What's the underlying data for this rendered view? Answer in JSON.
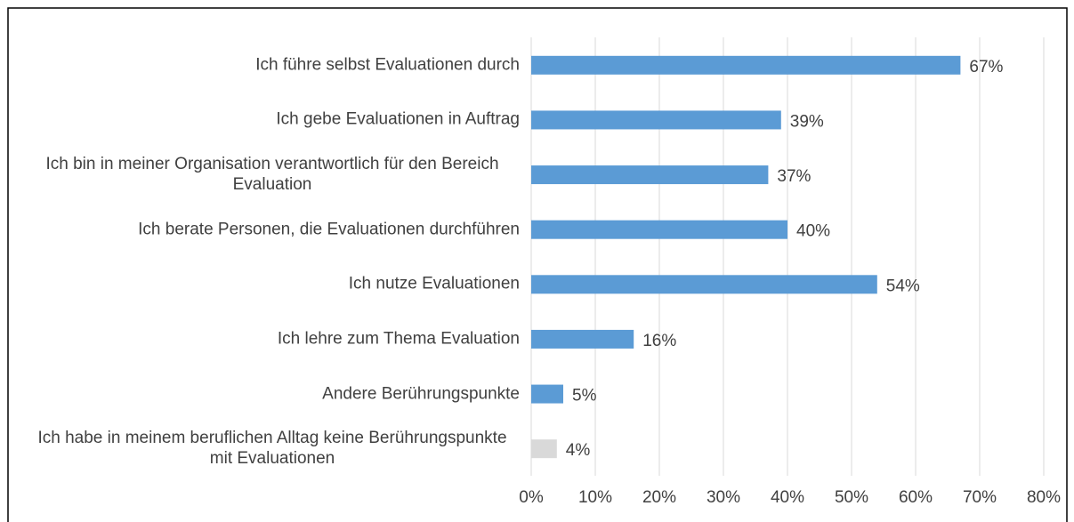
{
  "chart_data": {
    "type": "bar",
    "orientation": "horizontal",
    "categories": [
      "Ich führe selbst Evaluationen durch",
      "Ich gebe Evaluationen in Auftrag",
      "Ich bin in meiner Organisation verantwortlich für den Bereich Evaluation",
      "Ich berate Personen, die Evaluationen durchführen",
      "Ich nutze Evaluationen",
      "Ich lehre zum Thema Evaluation",
      "Andere Berührungspunkte",
      "Ich habe in meinem beruflichen Alltag keine Berührungspunkte mit Evaluationen"
    ],
    "values": [
      67,
      39,
      37,
      40,
      54,
      16,
      5,
      4
    ],
    "value_labels": [
      "67%",
      "39%",
      "37%",
      "40%",
      "54%",
      "16%",
      "5%",
      "4%"
    ],
    "colors": [
      "#5b9bd5",
      "#5b9bd5",
      "#5b9bd5",
      "#5b9bd5",
      "#5b9bd5",
      "#5b9bd5",
      "#5b9bd5",
      "#d9d9d9"
    ],
    "xlim": [
      0,
      80
    ],
    "xticks": [
      {
        "value": 0,
        "label": "0%"
      },
      {
        "value": 10,
        "label": "10%"
      },
      {
        "value": 20,
        "label": "20%"
      },
      {
        "value": 30,
        "label": "30%"
      },
      {
        "value": 40,
        "label": "40%"
      },
      {
        "value": 50,
        "label": "50%"
      },
      {
        "value": 60,
        "label": "60%"
      },
      {
        "value": 70,
        "label": "70%"
      },
      {
        "value": 80,
        "label": "80%"
      }
    ],
    "grid": true
  }
}
